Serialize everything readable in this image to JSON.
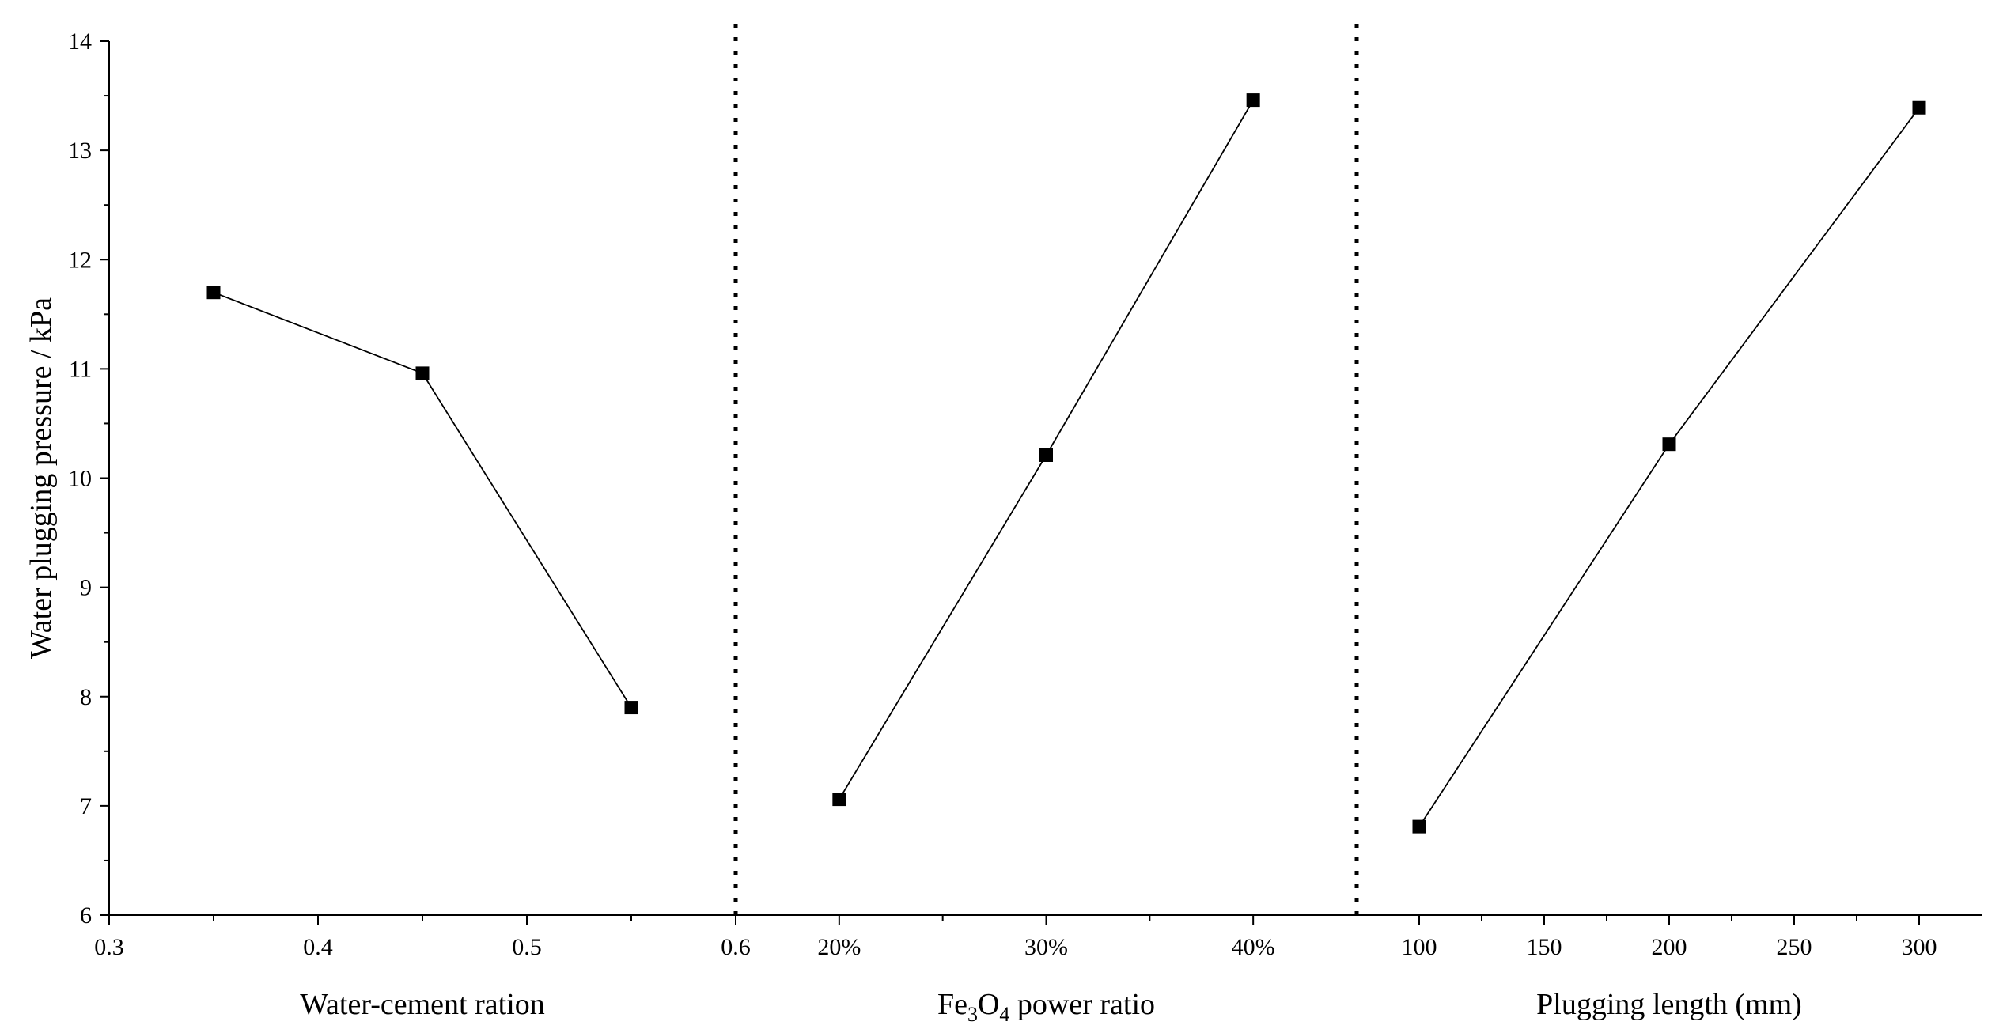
{
  "chart_data": {
    "type": "line",
    "y_axis": {
      "label": "Water plugging pressure / kPa",
      "range": [
        6,
        14
      ],
      "ticks": [
        "6",
        "7",
        "8",
        "9",
        "10",
        "11",
        "12",
        "13",
        "14"
      ],
      "minor_ticks": true
    },
    "panels": [
      {
        "xlabel": "Water-cement ration",
        "xlim": [
          0.3,
          0.6
        ],
        "x_ticks": [
          {
            "value": 0.3,
            "label": "0.3"
          },
          {
            "value": 0.4,
            "label": "0.4"
          },
          {
            "value": 0.5,
            "label": "0.5"
          },
          {
            "value": 0.6,
            "label": "0.6"
          }
        ],
        "points": [
          {
            "x": 0.35,
            "y": 11.7
          },
          {
            "x": 0.45,
            "y": 10.96
          },
          {
            "x": 0.55,
            "y": 7.9
          }
        ]
      },
      {
        "xlabel_parts": [
          "Fe",
          "3",
          "O",
          "4",
          " power ratio"
        ],
        "xlim": [
          0.15,
          0.45
        ],
        "x_ticks": [
          {
            "value": 0.2,
            "label": "20%"
          },
          {
            "value": 0.3,
            "label": "30%"
          },
          {
            "value": 0.4,
            "label": "40%"
          }
        ],
        "points": [
          {
            "x": 0.2,
            "y": 7.06
          },
          {
            "x": 0.3,
            "y": 10.21
          },
          {
            "x": 0.4,
            "y": 13.46
          }
        ]
      },
      {
        "xlabel": "Plugging length (mm)",
        "xlim": [
          75,
          325
        ],
        "x_ticks": [
          {
            "value": 100,
            "label": "100"
          },
          {
            "value": 150,
            "label": "150"
          },
          {
            "value": 200,
            "label": "200"
          },
          {
            "value": 250,
            "label": "250"
          },
          {
            "value": 300,
            "label": "300"
          }
        ],
        "points": [
          {
            "x": 100,
            "y": 6.81
          },
          {
            "x": 200,
            "y": 10.31
          },
          {
            "x": 300,
            "y": 13.39
          }
        ]
      }
    ],
    "dividers": "dotted vertical lines between panels",
    "grid": false,
    "legend": "none",
    "colors": {
      "line": "#000000",
      "marker": "#000000"
    }
  }
}
